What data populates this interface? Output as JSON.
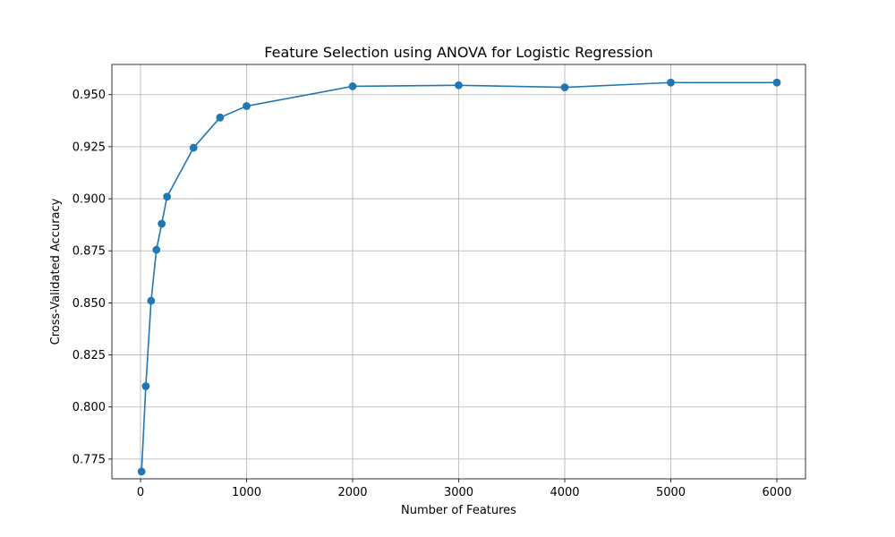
{
  "chart_data": {
    "type": "line",
    "title": "Feature Selection using ANOVA for Logistic Regression",
    "xlabel": "Number of Features",
    "ylabel": "Cross-Validated Accuracy",
    "xlim": [
      -270,
      6270
    ],
    "ylim": [
      0.7655,
      0.9645
    ],
    "xticks": [
      0,
      1000,
      2000,
      3000,
      4000,
      5000,
      6000
    ],
    "xtick_labels": [
      "0",
      "1000",
      "2000",
      "3000",
      "4000",
      "5000",
      "6000"
    ],
    "yticks": [
      0.775,
      0.8,
      0.825,
      0.85,
      0.875,
      0.9,
      0.925,
      0.95
    ],
    "ytick_labels": [
      "0.775",
      "0.800",
      "0.825",
      "0.850",
      "0.875",
      "0.900",
      "0.925",
      "0.950"
    ],
    "grid": true,
    "series": [
      {
        "color": "#1f77b4",
        "marker": "circle",
        "x": [
          10,
          50,
          100,
          150,
          200,
          250,
          500,
          750,
          1000,
          2000,
          3000,
          4000,
          5000,
          6000
        ],
        "y": [
          0.769,
          0.81,
          0.851,
          0.8755,
          0.888,
          0.901,
          0.9245,
          0.939,
          0.9445,
          0.954,
          0.9545,
          0.9535,
          0.9558,
          0.9558
        ]
      }
    ]
  }
}
